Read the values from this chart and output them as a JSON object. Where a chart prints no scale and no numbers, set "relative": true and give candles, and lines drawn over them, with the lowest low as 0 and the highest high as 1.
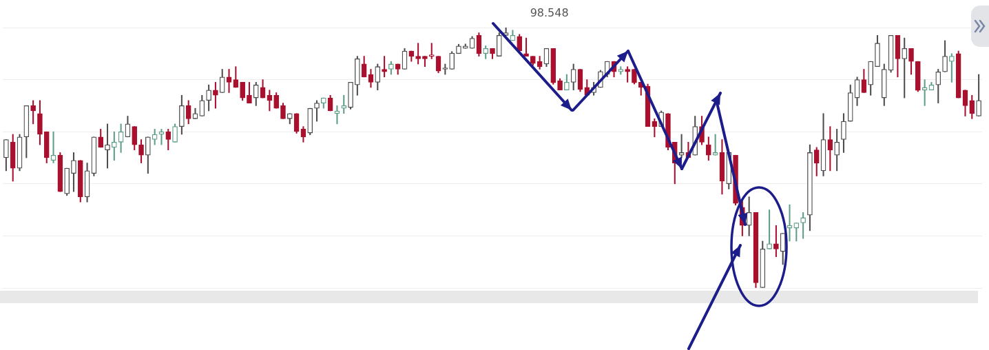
{
  "chart_data": {
    "type": "candlestick",
    "relative": true,
    "grid": "y",
    "tick_labels": false,
    "annotations": [
      "98.548"
    ],
    "categories": [
      null,
      null,
      null,
      null,
      null,
      null,
      null,
      null,
      null,
      null,
      null,
      null,
      null,
      null,
      null,
      null,
      null,
      null,
      null,
      null,
      null,
      null,
      null,
      null,
      null,
      null,
      null,
      null,
      null,
      null,
      null,
      null,
      null,
      null,
      null,
      null,
      null,
      null,
      null,
      null,
      null,
      null,
      null,
      null,
      null,
      null,
      null,
      null,
      null,
      null,
      null,
      null,
      null,
      null,
      null,
      null,
      null,
      null,
      null,
      null,
      null,
      null,
      null,
      null,
      null,
      null,
      null,
      null,
      null,
      null,
      null,
      null,
      null,
      null,
      null,
      null,
      null,
      null,
      null,
      null,
      null,
      null,
      null,
      null,
      null,
      null,
      null,
      null,
      null,
      null,
      null,
      null,
      null,
      null,
      null,
      null,
      null,
      null,
      null,
      null,
      null,
      null,
      null,
      null,
      null,
      null,
      null,
      null,
      null,
      null,
      null,
      null,
      null,
      null,
      null,
      null,
      null,
      null,
      null,
      null,
      null,
      null,
      null,
      null,
      null,
      null,
      null,
      null,
      null,
      null,
      null,
      null,
      null,
      null,
      null,
      null,
      null,
      null,
      null,
      null,
      null,
      null,
      null,
      null,
      null
    ],
    "ohlc": [
      [
        0.5,
        0.57,
        0.45,
        0.57
      ],
      [
        0.56,
        0.59,
        0.41,
        0.46
      ],
      [
        0.46,
        0.59,
        0.45,
        0.58
      ],
      [
        0.58,
        0.7,
        0.5,
        0.7
      ],
      [
        0.7,
        0.72,
        0.63,
        0.68
      ],
      [
        0.67,
        0.72,
        0.55,
        0.59
      ],
      [
        0.6,
        0.6,
        0.48,
        0.5
      ],
      [
        0.49,
        0.6,
        0.48,
        0.51
      ],
      [
        0.51,
        0.52,
        0.37,
        0.37
      ],
      [
        0.362,
        0.46,
        0.355,
        0.46
      ],
      [
        0.44,
        0.52,
        0.37,
        0.49
      ],
      [
        0.49,
        0.49,
        0.33,
        0.35
      ],
      [
        0.35,
        0.48,
        0.33,
        0.45
      ],
      [
        0.44,
        0.58,
        0.43,
        0.58
      ],
      [
        0.58,
        0.61,
        0.54,
        0.54
      ],
      [
        0.53,
        0.63,
        0.46,
        0.55
      ],
      [
        0.54,
        0.6,
        0.49,
        0.56
      ],
      [
        0.56,
        0.63,
        0.52,
        0.6
      ],
      [
        0.58,
        0.66,
        0.58,
        0.63
      ],
      [
        0.62,
        0.62,
        0.53,
        0.55
      ],
      [
        0.55,
        0.57,
        0.48,
        0.51
      ],
      [
        0.51,
        0.58,
        0.44,
        0.58
      ],
      [
        0.57,
        0.61,
        0.55,
        0.59
      ],
      [
        0.59,
        0.61,
        0.55,
        0.6
      ],
      [
        0.6,
        0.61,
        0.53,
        0.57
      ],
      [
        0.56,
        0.63,
        0.56,
        0.62
      ],
      [
        0.62,
        0.74,
        0.59,
        0.7
      ],
      [
        0.7,
        0.72,
        0.63,
        0.65
      ],
      [
        0.65,
        0.69,
        0.65,
        0.67
      ],
      [
        0.66,
        0.74,
        0.66,
        0.72
      ],
      [
        0.72,
        0.78,
        0.68,
        0.76
      ],
      [
        0.76,
        0.79,
        0.69,
        0.74
      ],
      [
        0.75,
        0.84,
        0.75,
        0.81
      ],
      [
        0.81,
        0.84,
        0.75,
        0.79
      ],
      [
        0.8,
        0.85,
        0.77,
        0.77
      ],
      [
        0.79,
        0.79,
        0.72,
        0.73
      ],
      [
        0.74,
        0.79,
        0.71,
        0.71
      ],
      [
        0.73,
        0.79,
        0.7,
        0.78
      ],
      [
        0.77,
        0.8,
        0.73,
        0.73
      ],
      [
        0.74,
        0.76,
        0.68,
        0.72
      ],
      [
        0.74,
        0.75,
        0.69,
        0.69
      ],
      [
        0.7,
        0.71,
        0.65,
        0.65
      ],
      [
        0.65,
        0.67,
        0.63,
        0.67
      ],
      [
        0.67,
        0.67,
        0.594,
        0.601
      ],
      [
        0.61,
        0.62,
        0.56,
        0.58
      ],
      [
        0.595,
        0.69,
        0.588,
        0.69
      ],
      [
        0.69,
        0.72,
        0.64,
        0.71
      ],
      [
        0.71,
        0.73,
        0.69,
        0.73
      ],
      [
        0.73,
        0.74,
        0.68,
        0.68
      ],
      [
        0.67,
        0.7,
        0.63,
        0.68
      ],
      [
        0.69,
        0.74,
        0.67,
        0.7
      ],
      [
        0.693,
        0.79,
        0.687,
        0.79
      ],
      [
        0.78,
        0.89,
        0.74,
        0.88
      ],
      [
        0.86,
        0.89,
        0.81,
        0.81
      ],
      [
        0.82,
        0.84,
        0.77,
        0.79
      ],
      [
        0.79,
        0.86,
        0.76,
        0.85
      ],
      [
        0.84,
        0.89,
        0.81,
        0.83
      ],
      [
        0.84,
        0.87,
        0.82,
        0.86
      ],
      [
        0.86,
        0.86,
        0.82,
        0.84
      ],
      [
        0.84,
        0.92,
        0.84,
        0.91
      ],
      [
        0.91,
        0.91,
        0.87,
        0.89
      ],
      [
        0.89,
        0.94,
        0.86,
        0.88
      ],
      [
        0.89,
        0.89,
        0.85,
        0.88
      ],
      [
        0.89,
        0.94,
        0.88,
        0.89
      ],
      [
        0.89,
        0.89,
        0.826,
        0.833
      ],
      [
        0.84,
        0.86,
        0.82,
        0.84
      ],
      [
        0.84,
        0.908,
        0.84,
        0.902
      ],
      [
        0.9,
        0.936,
        0.9,
        0.929
      ],
      [
        0.92,
        0.937,
        0.92,
        0.929
      ],
      [
        0.92,
        0.966,
        0.92,
        0.959
      ],
      [
        0.97,
        0.98,
        0.89,
        0.9
      ],
      [
        0.9,
        0.93,
        0.88,
        0.92
      ],
      [
        0.92,
        0.92,
        0.88,
        0.9
      ],
      [
        0.89,
        0.98,
        0.89,
        0.97
      ],
      [
        0.97,
        1,
        0.97,
        0.98
      ],
      [
        0.95,
        0.99,
        0.95,
        0.97
      ],
      [
        0.966,
        0.974,
        0.91,
        0.91
      ],
      [
        0.9,
        0.96,
        0.89,
        0.89
      ],
      [
        0.89,
        0.89,
        0.855,
        0.862
      ],
      [
        0.87,
        0.89,
        0.84,
        0.85
      ],
      [
        0.86,
        0.92,
        0.85,
        0.92
      ],
      [
        0.92,
        0.92,
        0.782,
        0.788
      ],
      [
        0.796,
        0.804,
        0.76,
        0.76
      ],
      [
        0.76,
        0.82,
        0.76,
        0.79
      ],
      [
        0.79,
        0.86,
        0.76,
        0.84
      ],
      [
        0.84,
        0.84,
        0.754,
        0.762
      ],
      [
        0.77,
        0.8,
        0.74,
        0.74
      ],
      [
        0.75,
        0.79,
        0.74,
        0.77
      ],
      [
        0.77,
        0.836,
        0.77,
        0.831
      ],
      [
        0.82,
        0.87,
        0.81,
        0.87
      ],
      [
        0.87,
        0.87,
        0.81,
        0.83
      ],
      [
        0.83,
        0.85,
        0.82,
        0.84
      ],
      [
        0.84,
        0.85,
        0.79,
        0.83
      ],
      [
        0.84,
        0.84,
        0.783,
        0.788
      ],
      [
        0.79,
        0.79,
        0.74,
        0.77
      ],
      [
        0.775,
        0.783,
        0.62,
        0.62
      ],
      [
        0.64,
        0.65,
        0.58,
        0.62
      ],
      [
        0.62,
        0.68,
        0.62,
        0.675
      ],
      [
        0.67,
        0.67,
        0.53,
        0.54
      ],
      [
        0.56,
        0.56,
        0.4,
        0.48
      ],
      [
        0.51,
        0.59,
        0.5,
        0.52
      ],
      [
        0.52,
        0.56,
        0.5,
        0.5
      ],
      [
        0.51,
        0.66,
        0.51,
        0.62
      ],
      [
        0.62,
        0.66,
        0.55,
        0.56
      ],
      [
        0.55,
        0.58,
        0.49,
        0.51
      ],
      [
        0.51,
        0.59,
        0.51,
        0.52
      ],
      [
        0.52,
        0.57,
        0.36,
        0.41
      ],
      [
        0.4,
        0.52,
        0.38,
        0.52
      ],
      [
        0.51,
        0.51,
        0.318,
        0.325
      ],
      [
        0.31,
        0.34,
        0.2,
        0.24
      ],
      [
        0.24,
        0.35,
        0.2,
        0.29
      ],
      [
        0.29,
        0.29,
        0,
        0.02
      ],
      [
        0,
        0.18,
        0,
        0.15
      ],
      [
        0.15,
        0.3,
        0.15,
        0.17
      ],
      [
        0.17,
        0.24,
        0.12,
        0.15
      ],
      [
        0.14,
        0.21,
        0.09,
        0.21
      ],
      [
        0.23,
        0.32,
        0.18,
        0.24
      ],
      [
        0.23,
        0.25,
        0.18,
        0.25
      ],
      [
        0.25,
        0.29,
        0.19,
        0.27
      ],
      [
        0.28,
        0.55,
        0.22,
        0.52
      ],
      [
        0.53,
        0.54,
        0.43,
        0.48
      ],
      [
        0.45,
        0.67,
        0.43,
        0.57
      ],
      [
        0.57,
        0.62,
        0.45,
        0.53
      ],
      [
        0.51,
        0.61,
        0.45,
        0.56
      ],
      [
        0.57,
        0.67,
        0.52,
        0.64
      ],
      [
        0.64,
        0.78,
        0.64,
        0.75
      ],
      [
        0.73,
        0.81,
        0.7,
        0.8
      ],
      [
        0.8,
        0.84,
        0.75,
        0.75
      ],
      [
        0.78,
        0.87,
        0.74,
        0.87
      ],
      [
        0.85,
        0.97,
        0.85,
        0.94
      ],
      [
        0.73,
        0.86,
        0.7,
        0.84
      ],
      [
        0.836,
        0.97,
        0.828,
        0.97
      ],
      [
        0.97,
        0.97,
        0.81,
        0.88
      ],
      [
        0.88,
        0.96,
        0.73,
        0.92
      ],
      [
        0.92,
        0.92,
        0.82,
        0.87
      ],
      [
        0.87,
        0.87,
        0.754,
        0.759
      ],
      [
        0.76,
        0.8,
        0.7,
        0.77
      ],
      [
        0.76,
        0.79,
        0.76,
        0.78
      ],
      [
        0.78,
        0.84,
        0.71,
        0.83
      ],
      [
        0.83,
        0.95,
        0.83,
        0.89
      ],
      [
        0.87,
        0.9,
        0.79,
        0.89
      ],
      [
        0.9,
        0.91,
        0.73,
        0.73
      ],
      [
        0.76,
        0.76,
        0.66,
        0.7
      ],
      [
        0.72,
        0.74,
        0.65,
        0.67
      ],
      [
        0.66,
        0.82,
        0.66,
        0.72
      ]
    ],
    "colors": [
      "#4d4d4d",
      "#a8102e",
      "#4d4d4d",
      "#4d4d4d",
      "#a8102e",
      "#a8102e",
      "#a8102e",
      "#5f9e86",
      "#a8102e",
      "#4d4d4d",
      "#4d4d4d",
      "#a8102e",
      "#4d4d4d",
      "#4d4d4d",
      "#a8102e",
      "#4d4d4d",
      "#5f9e86",
      "#5f9e86",
      "#4d4d4d",
      "#a8102e",
      "#a8102e",
      "#4d4d4d",
      "#5f9e86",
      "#5f9e86",
      "#a8102e",
      "#5f9e86",
      "#4d4d4d",
      "#a8102e",
      "#4d4d4d",
      "#4d4d4d",
      "#4d4d4d",
      "#a8102e",
      "#4d4d4d",
      "#a8102e",
      "#a8102e",
      "#a8102e",
      "#a8102e",
      "#4d4d4d",
      "#a8102e",
      "#a8102e",
      "#a8102e",
      "#a8102e",
      "#4d4d4d",
      "#a8102e",
      "#a8102e",
      "#4d4d4d",
      "#4d4d4d",
      "#5f9e86",
      "#a8102e",
      "#5f9e86",
      "#5f9e86",
      "#4d4d4d",
      "#4d4d4d",
      "#a8102e",
      "#a8102e",
      "#4d4d4d",
      "#a8102e",
      "#5f9e86",
      "#a8102e",
      "#4d4d4d",
      "#a8102e",
      "#a8102e",
      "#a8102e",
      "#a8102e",
      "#a8102e",
      "#4d4d4d",
      "#4d4d4d",
      "#4d4d4d",
      "#4d4d4d",
      "#4d4d4d",
      "#a8102e",
      "#5f9e86",
      "#a8102e",
      "#4d4d4d",
      "#4d4d4d",
      "#5f9e86",
      "#a8102e",
      "#a8102e",
      "#a8102e",
      "#a8102e",
      "#4d4d4d",
      "#a8102e",
      "#a8102e",
      "#5f9e86",
      "#4d4d4d",
      "#a8102e",
      "#a8102e",
      "#4d4d4d",
      "#4d4d4d",
      "#4d4d4d",
      "#a8102e",
      "#5f9e86",
      "#a8102e",
      "#a8102e",
      "#a8102e",
      "#a8102e",
      "#a8102e",
      "#4d4d4d",
      "#a8102e",
      "#a8102e",
      "#4d4d4d",
      "#a8102e",
      "#4d4d4d",
      "#a8102e",
      "#a8102e",
      "#5f9e86",
      "#a8102e",
      "#4d4d4d",
      "#a8102e",
      "#a8102e",
      "#4d4d4d",
      "#a8102e",
      "#4d4d4d",
      "#5f9e86",
      "#a8102e",
      "#4d4d4d",
      "#5f9e86",
      "#5f9e86",
      "#5f9e86",
      "#4d4d4d",
      "#a8102e",
      "#4d4d4d",
      "#a8102e",
      "#4d4d4d",
      "#4d4d4d",
      "#4d4d4d",
      "#4d4d4d",
      "#a8102e",
      "#4d4d4d",
      "#4d4d4d",
      "#4d4d4d",
      "#4d4d4d",
      "#a8102e",
      "#4d4d4d",
      "#a8102e",
      "#a8102e",
      "#5f9e86",
      "#5f9e86",
      "#4d4d4d",
      "#4d4d4d",
      "#5f9e86",
      "#a8102e",
      "#a8102e",
      "#a8102e",
      "#4d4d4d"
    ]
  }
}
